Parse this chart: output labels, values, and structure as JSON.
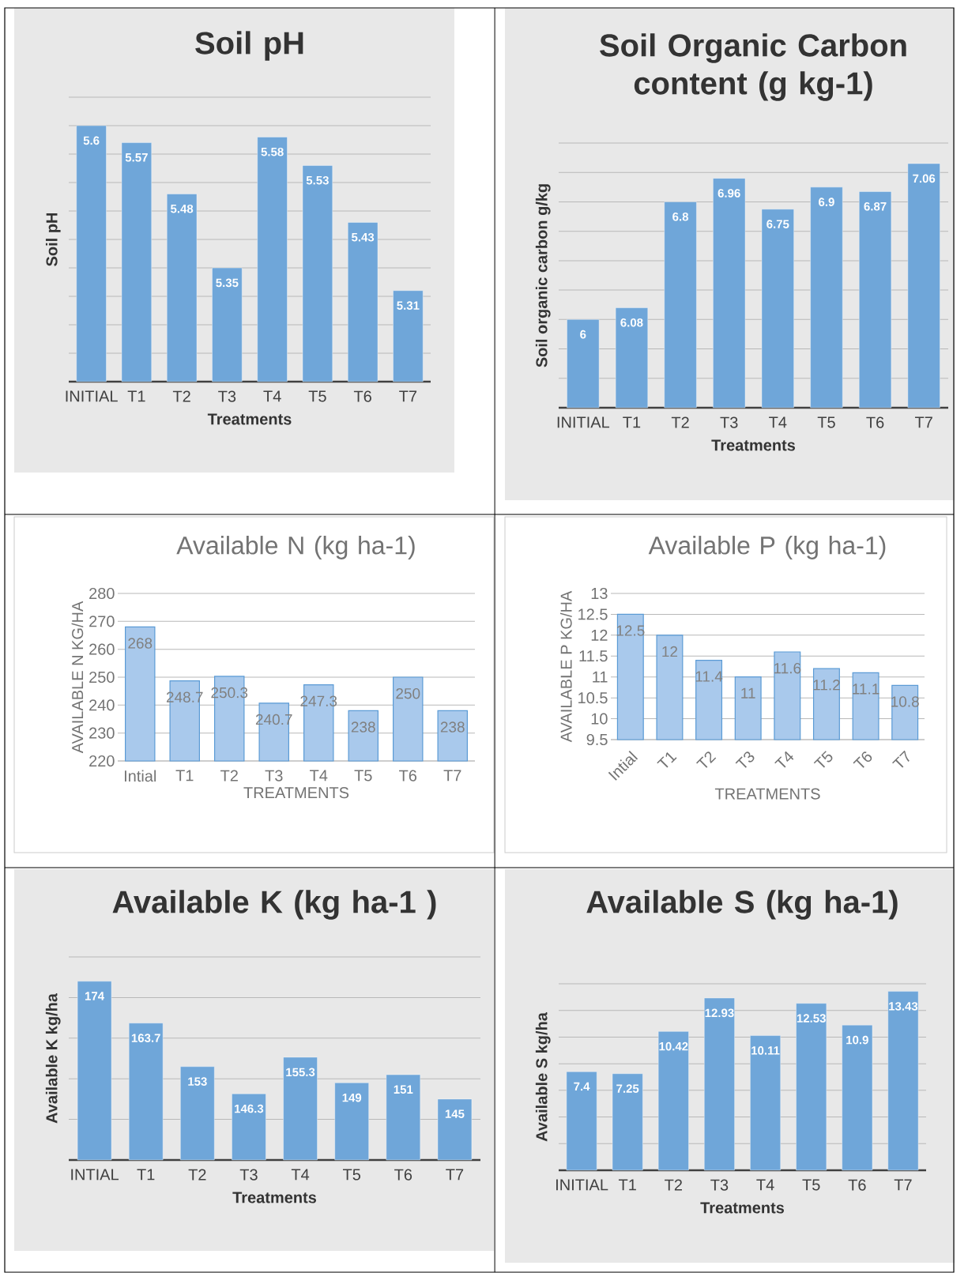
{
  "chart_data": [
    {
      "type": "bar",
      "title": "Soil pH",
      "xlabel": "Treatments",
      "ylabel": "Soil pH",
      "categories": [
        "INITIAL",
        "T1",
        "T2",
        "T3",
        "T4",
        "T5",
        "T6",
        "T7"
      ],
      "values": [
        5.6,
        5.57,
        5.48,
        5.35,
        5.58,
        5.53,
        5.43,
        5.31
      ],
      "color": "#6fa6d9",
      "data_labels": true,
      "grid": "y",
      "tick_labels": "x",
      "ylim": [
        5.15,
        5.65
      ],
      "yticks": [
        {
          "value": 5.15,
          "label": null
        },
        {
          "value": 5.2,
          "label": null
        },
        {
          "value": 5.25,
          "label": null
        },
        {
          "value": 5.3,
          "label": null
        },
        {
          "value": 5.35,
          "label": null
        },
        {
          "value": 5.4,
          "label": null
        },
        {
          "value": 5.45,
          "label": null
        },
        {
          "value": 5.5,
          "label": null
        },
        {
          "value": 5.55,
          "label": null
        },
        {
          "value": 5.6,
          "label": null
        },
        {
          "value": 5.65,
          "label": null
        }
      ]
    },
    {
      "type": "bar",
      "title": "Soil Organic Carbon content (g kg-1)",
      "xlabel": "Treatments",
      "ylabel": "Soil organic carbon g/kg",
      "categories": [
        "INITIAL",
        "T1",
        "T2",
        "T3",
        "T4",
        "T5",
        "T6",
        "T7"
      ],
      "values": [
        6,
        6.08,
        6.8,
        6.96,
        6.75,
        6.9,
        6.87,
        7.06
      ],
      "color": "#6fa6d9",
      "data_labels": true,
      "grid": "y",
      "tick_labels": "x",
      "ylim": [
        5.4,
        7.2
      ],
      "yticks": [
        {
          "value": 5.4,
          "label": null
        },
        {
          "value": 5.6,
          "label": null
        },
        {
          "value": 5.8,
          "label": null
        },
        {
          "value": 6.0,
          "label": null
        },
        {
          "value": 6.2,
          "label": null
        },
        {
          "value": 6.4,
          "label": null
        },
        {
          "value": 6.6,
          "label": null
        },
        {
          "value": 6.8,
          "label": null
        },
        {
          "value": 7.0,
          "label": null
        },
        {
          "value": 7.2,
          "label": null
        }
      ]
    },
    {
      "type": "bar",
      "title": "Available N (kg ha-1)",
      "xlabel": "TREATMENTS",
      "ylabel": "AVAILABLE N KG/HA",
      "categories": [
        "Intial",
        "T1",
        "T2",
        "T3",
        "T4",
        "T5",
        "T6",
        "T7"
      ],
      "values": [
        268,
        248.7,
        250.3,
        240.7,
        247.3,
        238,
        250,
        238
      ],
      "color": "#a9c9ec",
      "data_labels": true,
      "grid": "y",
      "ylim": [
        220,
        280
      ],
      "yticks": [
        220,
        230,
        240,
        250,
        260,
        270,
        280
      ]
    },
    {
      "type": "bar",
      "title": "Available P (kg ha-1)",
      "xlabel": "TREATMENTS",
      "ylabel": "AVAILABLE P KG/HA",
      "categories": [
        "Intial",
        "T1",
        "T2",
        "T3",
        "T4",
        "T5",
        "T6",
        "T7"
      ],
      "values": [
        12.5,
        12,
        11.4,
        11,
        11.6,
        11.2,
        11.1,
        10.8
      ],
      "color": "#a9c9ec",
      "data_labels": true,
      "grid": "y",
      "ylim": [
        9.5,
        13
      ],
      "yticks": [
        9.5,
        10,
        10.5,
        11,
        11.5,
        12,
        12.5,
        13
      ]
    },
    {
      "type": "bar",
      "title": "Available K (kg ha-1 )",
      "xlabel": "Treatments",
      "ylabel": "Available K  kg/ha",
      "categories": [
        "INTIAL",
        "T1",
        "T2",
        "T3",
        "T4",
        "T5",
        "T6",
        "T7"
      ],
      "values": [
        174,
        163.7,
        153,
        146.3,
        155.3,
        149,
        151,
        145
      ],
      "color": "#6fa6d9",
      "data_labels": true,
      "grid": "y",
      "tick_labels": "x",
      "ylim": [
        130,
        180
      ],
      "yticks": [
        {
          "value": 130,
          "label": null
        },
        {
          "value": 140,
          "label": null
        },
        {
          "value": 150,
          "label": null
        },
        {
          "value": 160,
          "label": null
        },
        {
          "value": 170,
          "label": null
        },
        {
          "value": 180,
          "label": null
        }
      ]
    },
    {
      "type": "bar",
      "title": "Available S (kg ha-1)",
      "xlabel": "Treatments",
      "ylabel": "Available S kg/ha",
      "categories": [
        "INITIAL",
        "T1",
        "T2",
        "T3",
        "T4",
        "T5",
        "T6",
        "T7"
      ],
      "values": [
        7.4,
        7.25,
        10.42,
        12.93,
        10.11,
        12.53,
        10.9,
        13.43
      ],
      "color": "#6fa6d9",
      "data_labels": true,
      "grid": "y",
      "tick_labels": "x",
      "ylim": [
        0,
        14
      ],
      "yticks": [
        {
          "value": 0,
          "label": null
        },
        {
          "value": 2,
          "label": null
        },
        {
          "value": 4,
          "label": null
        },
        {
          "value": 6,
          "label": null
        },
        {
          "value": 8,
          "label": null
        },
        {
          "value": 10,
          "label": null
        },
        {
          "value": 12,
          "label": null
        },
        {
          "value": 14,
          "label": null
        }
      ]
    }
  ]
}
